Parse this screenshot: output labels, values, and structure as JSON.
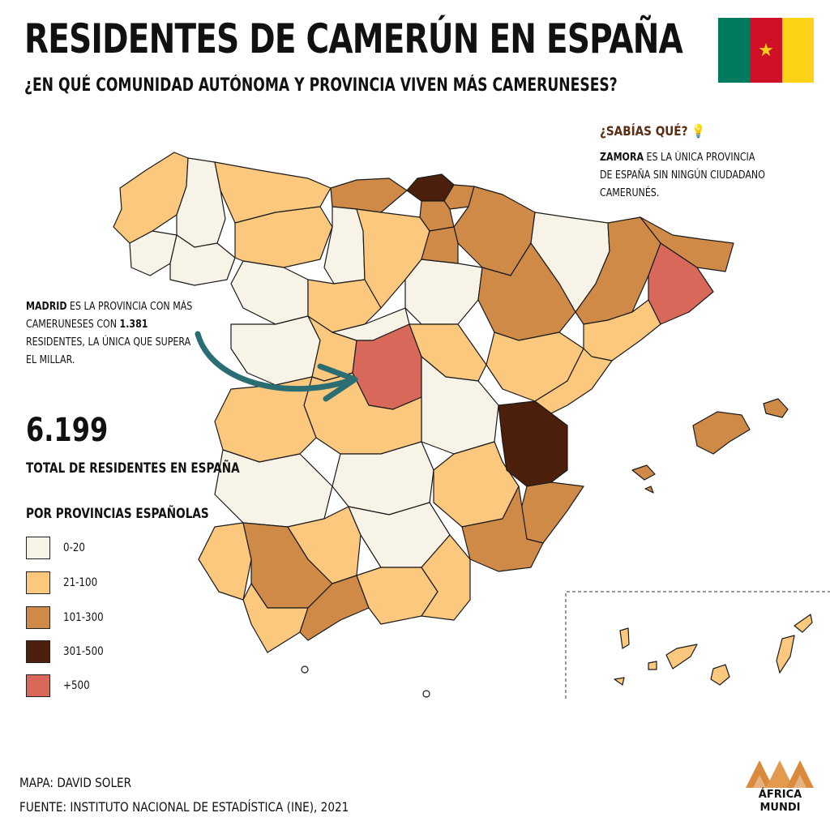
{
  "title": "RESIDENTES DE CAMERÚN EN ESPAÑA",
  "subtitle": "¿EN QUÉ COMUNIDAD AUTÓNOMA Y PROVINCIA VIVEN MÁS CAMERUNESES?",
  "flag": {
    "colors": [
      "#007a5e",
      "#ce1126",
      "#fcd116"
    ],
    "star": "★"
  },
  "sabias": {
    "title": "¿SABÍAS QUÉ?",
    "highlight": "ZAMORA",
    "text": " ES LA ÚNICA PROVINCIA DE ESPAÑA SIN NINGÚN CIUDADANO CAMERUNÉS."
  },
  "madrid_note": {
    "highlight1": "MADRID",
    "text1": " ES LA PROVINCIA CON MÁS CAMERUNESES CON ",
    "highlight2": "1.381",
    "text2": " RESIDENTES, LA ÚNICA QUE SUPERA EL MILLAR."
  },
  "total": {
    "number": "6.199",
    "label": "TOTAL DE RESIDENTES EN ESPAÑA"
  },
  "legend": {
    "title": "POR PROVINCIAS ESPAÑOLAS",
    "items": [
      {
        "label": "0-20",
        "color": "#f8f3e7"
      },
      {
        "label": "21-100",
        "color": "#fbc87e"
      },
      {
        "label": "101-300",
        "color": "#cf8a48"
      },
      {
        "label": "301-500",
        "color": "#4b1f0b"
      },
      {
        "label": "+500",
        "color": "#d8695a"
      }
    ]
  },
  "credits": {
    "map": "MAPA: DAVID SOLER",
    "source": "FUENTE: INSTITUTO NACIONAL DE ESTADÍSTICA (INE), 2021"
  },
  "logo": {
    "line1": "ÁFRICA",
    "line2": "MUNDI",
    "color": "#d98a3c"
  },
  "arrow_color": "#2a6e74"
}
